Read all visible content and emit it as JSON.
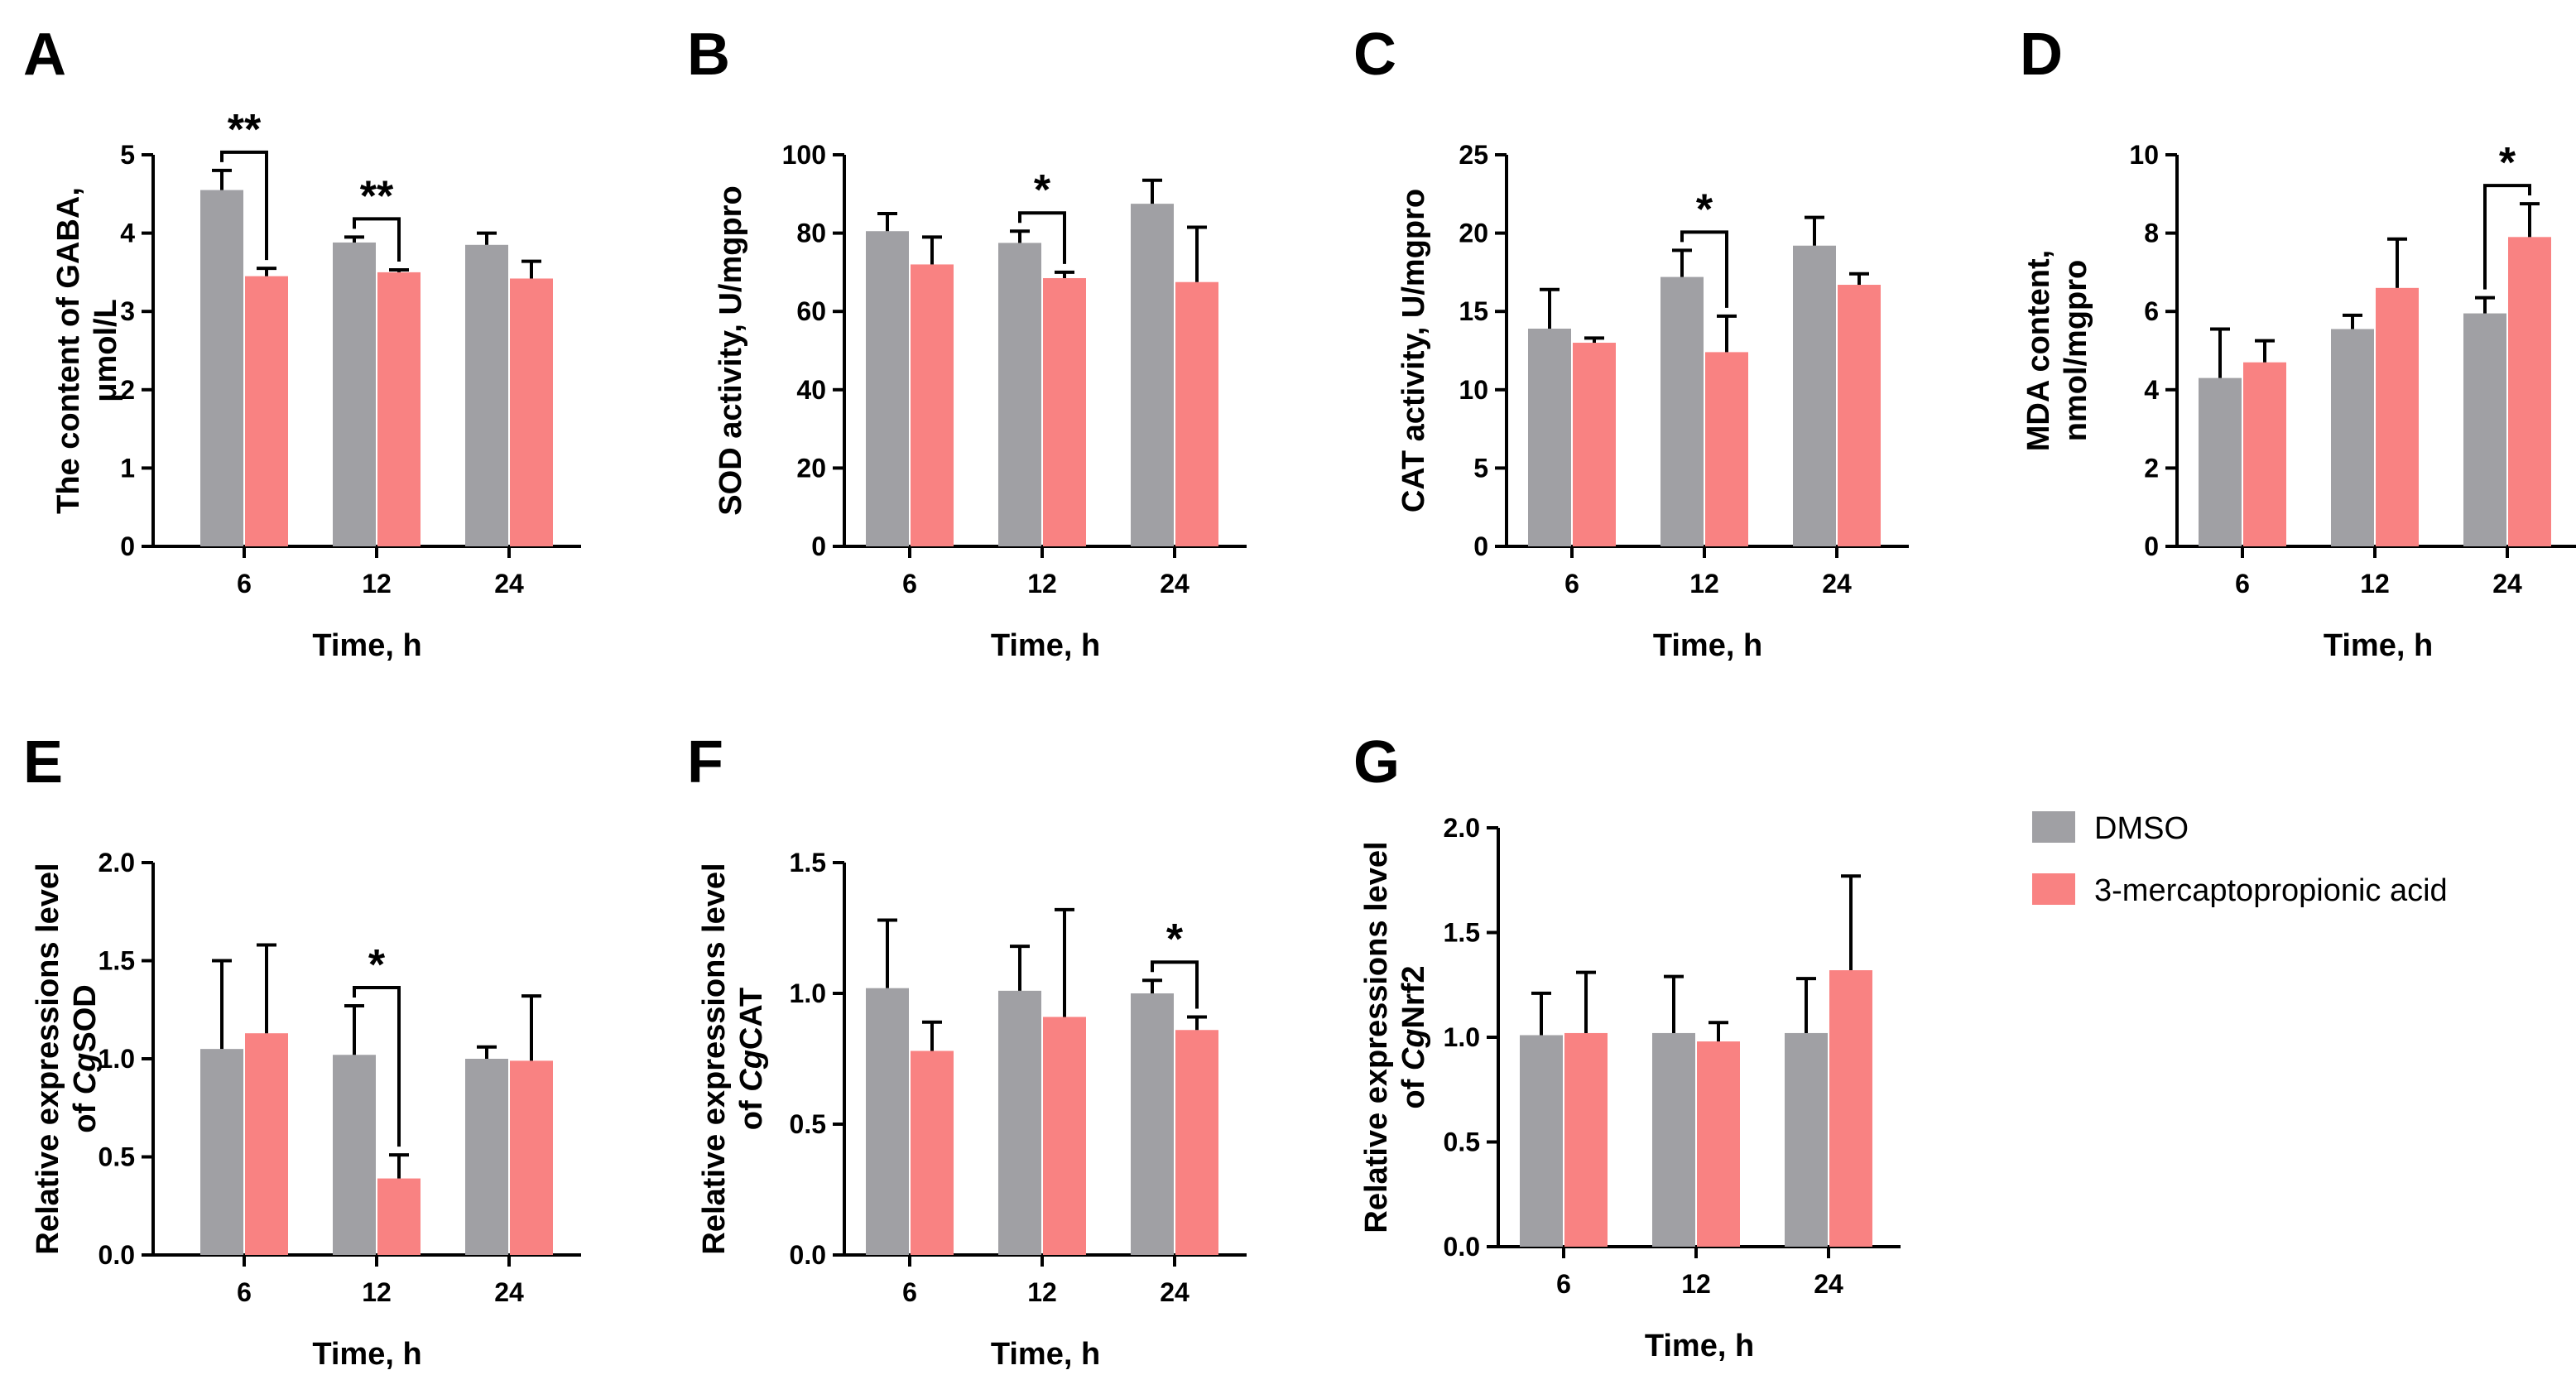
{
  "legend": [
    {
      "name": "DMSO",
      "color": "#a0a0a4"
    },
    {
      "name": "3-mercaptopropionic acid",
      "color": "#f98282"
    }
  ],
  "chart_data": [
    {
      "type": "bar",
      "panel": "A",
      "categories": [
        "6",
        "12",
        "24"
      ],
      "xlabel": "Time, h",
      "ylabel_lines": [
        "The content of GABA,",
        "μmol/L"
      ],
      "ylim": [
        0,
        5
      ],
      "yticks": [
        "0",
        "1",
        "2",
        "3",
        "4",
        "5"
      ],
      "series": [
        {
          "name": "DMSO",
          "values": [
            4.55,
            3.88,
            3.85
          ],
          "errors": [
            0.25,
            0.07,
            0.15
          ]
        },
        {
          "name": "3-mercaptopropionic acid",
          "values": [
            3.45,
            3.5,
            3.42
          ],
          "errors": [
            0.1,
            0.03,
            0.22
          ]
        }
      ],
      "significance": [
        {
          "category": "6",
          "label": "**"
        },
        {
          "category": "12",
          "label": "**"
        }
      ]
    },
    {
      "type": "bar",
      "panel": "B",
      "categories": [
        "6",
        "12",
        "24"
      ],
      "xlabel": "Time, h",
      "ylabel_lines": [
        "SOD activity, U/mgpro"
      ],
      "ylim": [
        0,
        100
      ],
      "yticks": [
        "0",
        "20",
        "40",
        "60",
        "80",
        "100"
      ],
      "series": [
        {
          "name": "DMSO",
          "values": [
            80.5,
            77.5,
            87.5
          ],
          "errors": [
            4.5,
            3,
            6
          ]
        },
        {
          "name": "3-mercaptopropionic acid",
          "values": [
            72,
            68.5,
            67.5
          ],
          "errors": [
            7,
            1.5,
            14
          ]
        }
      ],
      "significance": [
        {
          "category": "12",
          "label": "*"
        }
      ]
    },
    {
      "type": "bar",
      "panel": "C",
      "categories": [
        "6",
        "12",
        "24"
      ],
      "xlabel": "Time, h",
      "ylabel_lines": [
        "CAT activity, U/mgpro"
      ],
      "ylim": [
        0,
        25
      ],
      "yticks": [
        "0",
        "5",
        "10",
        "15",
        "20",
        "25"
      ],
      "series": [
        {
          "name": "DMSO",
          "values": [
            13.9,
            17.2,
            19.2
          ],
          "errors": [
            2.5,
            1.7,
            1.8
          ]
        },
        {
          "name": "3-mercaptopropionic acid",
          "values": [
            13,
            12.4,
            16.7
          ],
          "errors": [
            0.3,
            2.3,
            0.7
          ]
        }
      ],
      "significance": [
        {
          "category": "12",
          "label": "*"
        }
      ]
    },
    {
      "type": "bar",
      "panel": "D",
      "categories": [
        "6",
        "12",
        "24"
      ],
      "xlabel": "Time, h",
      "ylabel_lines": [
        "MDA content,",
        "nmol/mgpro"
      ],
      "ylim": [
        0,
        10
      ],
      "yticks": [
        "0",
        "2",
        "4",
        "6",
        "8",
        "10"
      ],
      "series": [
        {
          "name": "DMSO",
          "values": [
            4.3,
            5.55,
            5.95
          ],
          "errors": [
            1.25,
            0.35,
            0.4
          ]
        },
        {
          "name": "3-mercaptopropionic acid",
          "values": [
            4.7,
            6.6,
            7.9
          ],
          "errors": [
            0.55,
            1.25,
            0.85
          ]
        }
      ],
      "significance": [
        {
          "category": "24",
          "label": "*"
        }
      ]
    },
    {
      "type": "bar",
      "panel": "E",
      "categories": [
        "6",
        "12",
        "24"
      ],
      "xlabel": "Time, h",
      "ylabel_lines": [
        "Relative  expressions level",
        "of CgSOD"
      ],
      "ylim": [
        0,
        2
      ],
      "yticks": [
        "0.0",
        "0.5",
        "1.0",
        "1.5",
        "2.0"
      ],
      "series": [
        {
          "name": "DMSO",
          "values": [
            1.05,
            1.02,
            1.0
          ],
          "errors": [
            0.45,
            0.25,
            0.06
          ]
        },
        {
          "name": "3-mercaptopropionic acid",
          "values": [
            1.13,
            0.39,
            0.99
          ],
          "errors": [
            0.45,
            0.12,
            0.33
          ]
        }
      ],
      "significance": [
        {
          "category": "12",
          "label": "*"
        }
      ]
    },
    {
      "type": "bar",
      "panel": "F",
      "categories": [
        "6",
        "12",
        "24"
      ],
      "xlabel": "Time, h",
      "ylabel_lines": [
        "Relative  expressions level",
        "of CgCAT"
      ],
      "ylim": [
        0,
        1.5
      ],
      "yticks": [
        "0.0",
        "0.5",
        "1.0",
        "1.5"
      ],
      "series": [
        {
          "name": "DMSO",
          "values": [
            1.02,
            1.01,
            1.0
          ],
          "errors": [
            0.26,
            0.17,
            0.05
          ]
        },
        {
          "name": "3-mercaptopropionic acid",
          "values": [
            0.78,
            0.91,
            0.86
          ],
          "errors": [
            0.11,
            0.41,
            0.05
          ]
        }
      ],
      "significance": [
        {
          "category": "24",
          "label": "*"
        }
      ]
    },
    {
      "type": "bar",
      "panel": "G",
      "categories": [
        "6",
        "12",
        "24"
      ],
      "xlabel": "Time, h",
      "ylabel_lines": [
        "Relative  expressions level",
        "of CgNrf2"
      ],
      "ylim": [
        0,
        2
      ],
      "yticks": [
        "0.0",
        "0.5",
        "1.0",
        "1.5",
        "2.0"
      ],
      "series": [
        {
          "name": "DMSO",
          "values": [
            1.01,
            1.02,
            1.02
          ],
          "errors": [
            0.2,
            0.27,
            0.26
          ]
        },
        {
          "name": "3-mercaptopropionic acid",
          "values": [
            1.02,
            0.98,
            1.32
          ],
          "errors": [
            0.29,
            0.09,
            0.45
          ]
        }
      ],
      "significance": []
    }
  ]
}
